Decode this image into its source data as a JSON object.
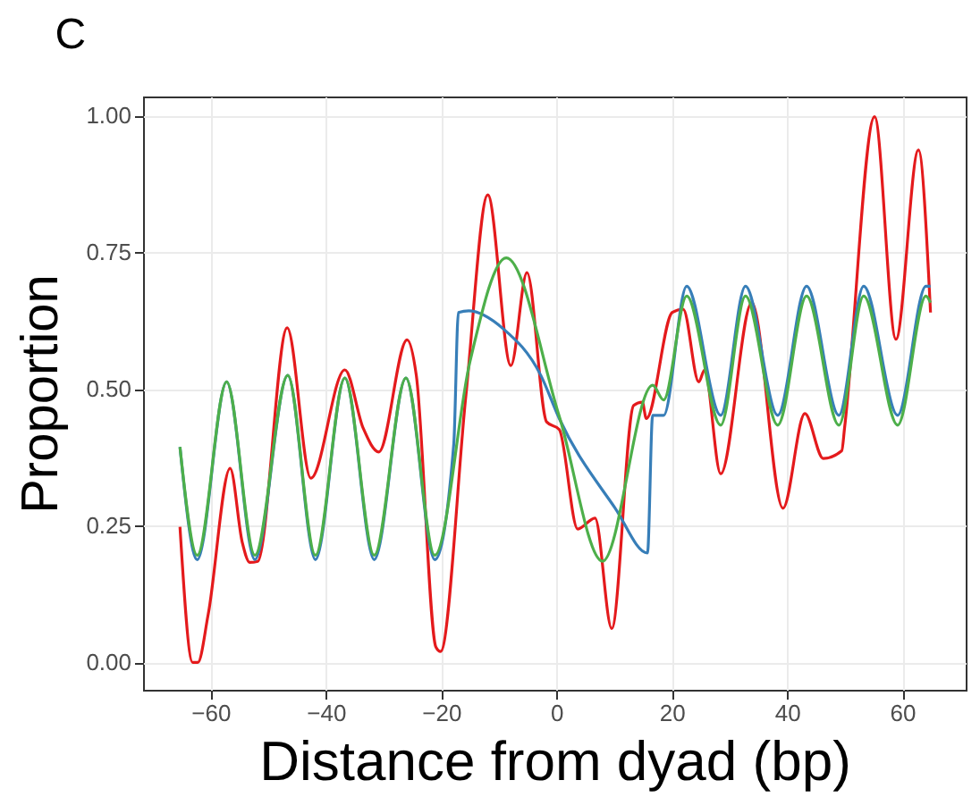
{
  "chart_data": {
    "type": "line",
    "xlabel": "Distance from dyad (bp)",
    "ylabel": "Proportion",
    "annotations": [
      "C"
    ],
    "xlim": [
      -71.7,
      71
    ],
    "ylim": [
      -0.05,
      1.035
    ],
    "xticks": [
      -60,
      -40,
      -20,
      0,
      20,
      40,
      60
    ],
    "yticks": [
      {
        "value": 0,
        "label": "0.00"
      },
      0.25,
      {
        "value": 0.5,
        "label": "0.50"
      },
      0.75,
      {
        "value": 1,
        "label": "1.00"
      }
    ],
    "grid": true,
    "line_style": "solid",
    "series": [
      {
        "color": "#e41a1c",
        "x": [
          -65.3,
          -63.1,
          -62.2,
          -60.4,
          -56.6,
          -54.5,
          -53.2,
          -51.8,
          -46.7,
          -42.6,
          -36.7,
          -33.5,
          -30.8,
          -25.9,
          -24.3,
          -20.9,
          -20.1,
          -15.7,
          -11.9,
          -7.9,
          -5.1,
          -1.7,
          0.5,
          3.7,
          6.7,
          9.6,
          13.4,
          14.9,
          15.6,
          20.1,
          22.0,
          24.7,
          25.7,
          28.5,
          33.9,
          39.3,
          43.1,
          46.3,
          49.5,
          50.0,
          55.2,
          58.9,
          62.8,
          64.9
        ],
        "values": [
          0.248,
          0.0,
          0.0,
          0.088,
          0.355,
          0.22,
          0.183,
          0.185,
          0.612,
          0.337,
          0.535,
          0.428,
          0.385,
          0.59,
          0.525,
          0.028,
          0.02,
          0.488,
          0.855,
          0.543,
          0.713,
          0.44,
          0.426,
          0.244,
          0.264,
          0.062,
          0.47,
          0.476,
          0.446,
          0.64,
          0.646,
          0.513,
          0.535,
          0.345,
          0.658,
          0.282,
          0.455,
          0.373,
          0.387,
          0.43,
          0.998,
          0.591,
          0.937,
          0.64
        ]
      },
      {
        "color": "#377eb8",
        "x": [
          -65.3,
          -62.3,
          -57.2,
          -52.3,
          -46.6,
          -41.8,
          -36.7,
          -31.6,
          -26.1,
          -21.1,
          -17.8,
          -17.0,
          -15.2,
          -9.2,
          -2.7,
          0.5,
          10.2,
          15.8,
          16.7,
          18.6,
          22.6,
          28.5,
          32.8,
          38.4,
          43.4,
          49.0,
          53.3,
          59.2,
          64.1,
          64.9
        ],
        "values": [
          0.394,
          0.188,
          0.513,
          0.188,
          0.525,
          0.188,
          0.52,
          0.188,
          0.52,
          0.188,
          0.4,
          0.64,
          0.643,
          0.61,
          0.525,
          0.446,
          0.282,
          0.2,
          0.452,
          0.452,
          0.688,
          0.452,
          0.688,
          0.452,
          0.688,
          0.452,
          0.688,
          0.452,
          0.688,
          0.688
        ]
      },
      {
        "color": "#4daf4a",
        "x": [
          -65.3,
          -62.3,
          -57.2,
          -52.3,
          -46.6,
          -41.8,
          -36.7,
          -31.6,
          -26.1,
          -21.1,
          -15.0,
          -8.7,
          0.5,
          8.0,
          16.7,
          18.6,
          22.6,
          28.5,
          32.8,
          38.4,
          43.4,
          49.0,
          53.3,
          59.2,
          64.1,
          64.9
        ],
        "values": [
          0.394,
          0.196,
          0.513,
          0.196,
          0.525,
          0.196,
          0.52,
          0.196,
          0.52,
          0.196,
          0.55,
          0.74,
          0.45,
          0.185,
          0.507,
          0.48,
          0.67,
          0.434,
          0.67,
          0.434,
          0.67,
          0.434,
          0.67,
          0.434,
          0.67,
          0.658
        ]
      }
    ]
  }
}
